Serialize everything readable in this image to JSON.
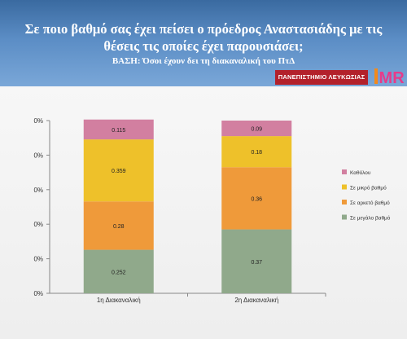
{
  "header": {
    "title": "Σε ποιο βαθμό σας έχει πείσει ο πρόεδρος Αναστασιάδης με τις θέσεις τις οποίες έχει παρουσιάσει;",
    "subtitle": "ΒΑΣΗ: Όσοι έχουν δει τη διακαναλική του ΠτΔ",
    "university_logo": "ΠΑΝΕΠΙΣΤΗΜΙΟ ΛΕΥΚΩΣΙΑΣ",
    "imr_logo": "IMR"
  },
  "colors": {
    "header_top": "#3a6aa0",
    "header_bottom": "#7aa7d8",
    "university_red": "#b3212b"
  },
  "chart_data": {
    "type": "bar",
    "stacked": true,
    "categories": [
      "1η Διακαναλική",
      "2η Διακαναλική"
    ],
    "y_tick_labels": [
      "0%",
      "0%",
      "0%",
      "0%",
      "0%",
      "0%"
    ],
    "ylim": [
      0,
      1
    ],
    "grid": false,
    "legend_position": "right",
    "series": [
      {
        "name": "Σε μεγάλο βαθμό",
        "values": [
          0.252,
          0.37
        ],
        "labels": [
          "0.252",
          "0.37"
        ],
        "color": "#90a98b"
      },
      {
        "name": "Σε αρκετό βαθμό",
        "values": [
          0.28,
          0.36
        ],
        "labels": [
          "0.28",
          "0.36"
        ],
        "color": "#ef9a3a"
      },
      {
        "name": "Σε μικρό βαθμό",
        "values": [
          0.359,
          0.18
        ],
        "labels": [
          "0.359",
          "0.18"
        ],
        "color": "#eec12a"
      },
      {
        "name": "Καθόλου",
        "values": [
          0.115,
          0.09
        ],
        "labels": [
          "0.115",
          "0.09"
        ],
        "color": "#d27fa0"
      }
    ],
    "legend_order": [
      "Καθόλου",
      "Σε μικρό βαθμό",
      "Σε αρκετό βαθμό",
      "Σε μεγάλο βαθμό"
    ]
  }
}
